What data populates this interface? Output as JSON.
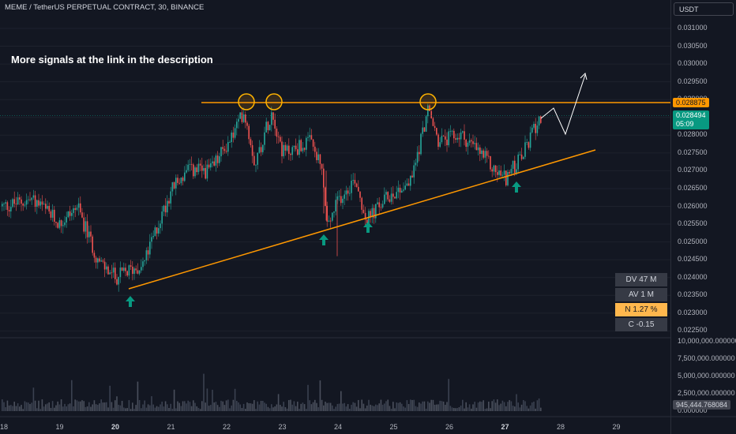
{
  "header": {
    "symbol_title": "MEME / TetherUS PERPETUAL CONTRACT, 30, BINANCE",
    "currency": "USDT"
  },
  "annotation": {
    "promo_text": "More signals at the link in the description"
  },
  "price_axis": {
    "ticks": [
      "0.031000",
      "0.030500",
      "0.030000",
      "0.029500",
      "0.029000",
      "0.028500",
      "0.028000",
      "0.027500",
      "0.027000",
      "0.026500",
      "0.026000",
      "0.025500",
      "0.025000",
      "0.024500",
      "0.024000",
      "0.023500",
      "0.023000",
      "0.022500"
    ],
    "resistance_label": "0.028875",
    "last_price": "0.028494",
    "countdown": "05:09"
  },
  "volume_axis": {
    "ticks": [
      "10,000,000.000000",
      "7,500,000.000000",
      "5,000,000.000000",
      "2,500,000.000000",
      "0.000000"
    ],
    "current_volume": "945,444.768084"
  },
  "time_axis": {
    "labels": [
      "18",
      "19",
      "20",
      "21",
      "22",
      "23",
      "24",
      "25",
      "26",
      "27",
      "28",
      "29"
    ],
    "bold_labels": [
      "20",
      "27"
    ]
  },
  "stats": {
    "dv": "DV 47 M",
    "av": "AV 1 M",
    "n": "N 1.27 %",
    "c": "C  -0.15"
  },
  "colors": {
    "background": "#131722",
    "up": "#26a69a",
    "down": "#ef5350",
    "resistance": "#ff9800",
    "support": "#ff9800",
    "signal_arrow": "#089981"
  },
  "chart_data": {
    "type": "candlestick",
    "price_ylim": [
      0.0222,
      0.0313
    ],
    "resistance_level": 0.028875,
    "last_price": 0.028494,
    "volume_ylim": [
      0,
      10000000
    ],
    "price_path": [
      {
        "x": "18",
        "y": 0.026
      },
      {
        "x": "18.5",
        "y": 0.0262
      },
      {
        "x": "19",
        "y": 0.0255
      },
      {
        "x": "19.3",
        "y": 0.026
      },
      {
        "x": "19.7",
        "y": 0.0244
      },
      {
        "x": "20",
        "y": 0.024
      },
      {
        "x": "20.5",
        "y": 0.0244
      },
      {
        "x": "21",
        "y": 0.0265
      },
      {
        "x": "21.3",
        "y": 0.027
      },
      {
        "x": "21.7",
        "y": 0.027
      },
      {
        "x": "22.1",
        "y": 0.028
      },
      {
        "x": "22.3",
        "y": 0.0287
      },
      {
        "x": "22.5",
        "y": 0.0272
      },
      {
        "x": "22.8",
        "y": 0.0287
      },
      {
        "x": "23",
        "y": 0.0275
      },
      {
        "x": "23.5",
        "y": 0.0278
      },
      {
        "x": "23.7",
        "y": 0.027
      },
      {
        "x": "23.8",
        "y": 0.0254
      },
      {
        "x": "24",
        "y": 0.0262
      },
      {
        "x": "24.3",
        "y": 0.0268
      },
      {
        "x": "24.5",
        "y": 0.0256
      },
      {
        "x": "24.9",
        "y": 0.0263
      },
      {
        "x": "25.3",
        "y": 0.0267
      },
      {
        "x": "25.6",
        "y": 0.0287
      },
      {
        "x": "25.8",
        "y": 0.0278
      },
      {
        "x": "26.2",
        "y": 0.028
      },
      {
        "x": "26.6",
        "y": 0.0274
      },
      {
        "x": "26.8",
        "y": 0.027
      },
      {
        "x": "27",
        "y": 0.0268
      },
      {
        "x": "27.3",
        "y": 0.0274
      },
      {
        "x": "27.6",
        "y": 0.02849
      }
    ]
  }
}
